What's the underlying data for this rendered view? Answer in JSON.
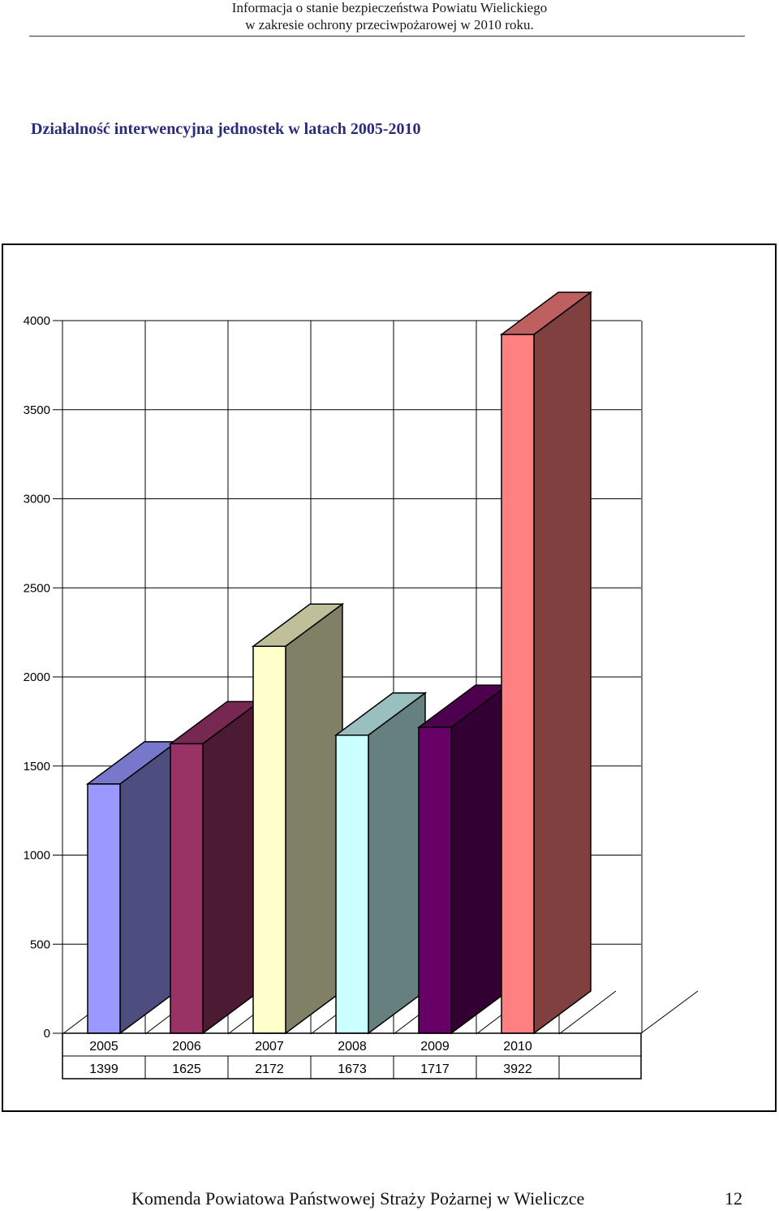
{
  "header": {
    "line1": "Informacja o stanie bezpieczeństwa Powiatu Wielickiego",
    "line2": "w zakresie ochrony przeciwpożarowej w 2010 roku."
  },
  "footer": {
    "text": "Komenda Powiatowa Państwowej Straży Pożarnej w Wieliczce",
    "page": "12"
  },
  "chart_data": {
    "type": "bar",
    "title": "Działalność interwencyjna jednostek w latach 2005-2010",
    "categories": [
      "2005",
      "2006",
      "2007",
      "2008",
      "2009",
      "2010"
    ],
    "values": [
      1399,
      1625,
      2172,
      1673,
      1717,
      3922
    ],
    "value_labels": [
      "1399",
      "1625",
      "2172",
      "1673",
      "1717",
      "3922"
    ],
    "ylim": [
      0,
      4000
    ],
    "yticks": [
      0,
      500,
      1000,
      1500,
      2000,
      2500,
      3000,
      3500,
      4000
    ],
    "grid": true,
    "three_d": true,
    "data_table": true,
    "colors": [
      {
        "front": "#9999ff",
        "side": "#4d4d7f",
        "top": "#7777cc"
      },
      {
        "front": "#993366",
        "side": "#4d1a33",
        "top": "#772850"
      },
      {
        "front": "#ffffcc",
        "side": "#808066",
        "top": "#bfbf99"
      },
      {
        "front": "#ccffff",
        "side": "#668080",
        "top": "#99bfbf"
      },
      {
        "front": "#660066",
        "side": "#330033",
        "top": "#4d004d"
      },
      {
        "front": "#ff8080",
        "side": "#804040",
        "top": "#bf6060"
      }
    ]
  }
}
